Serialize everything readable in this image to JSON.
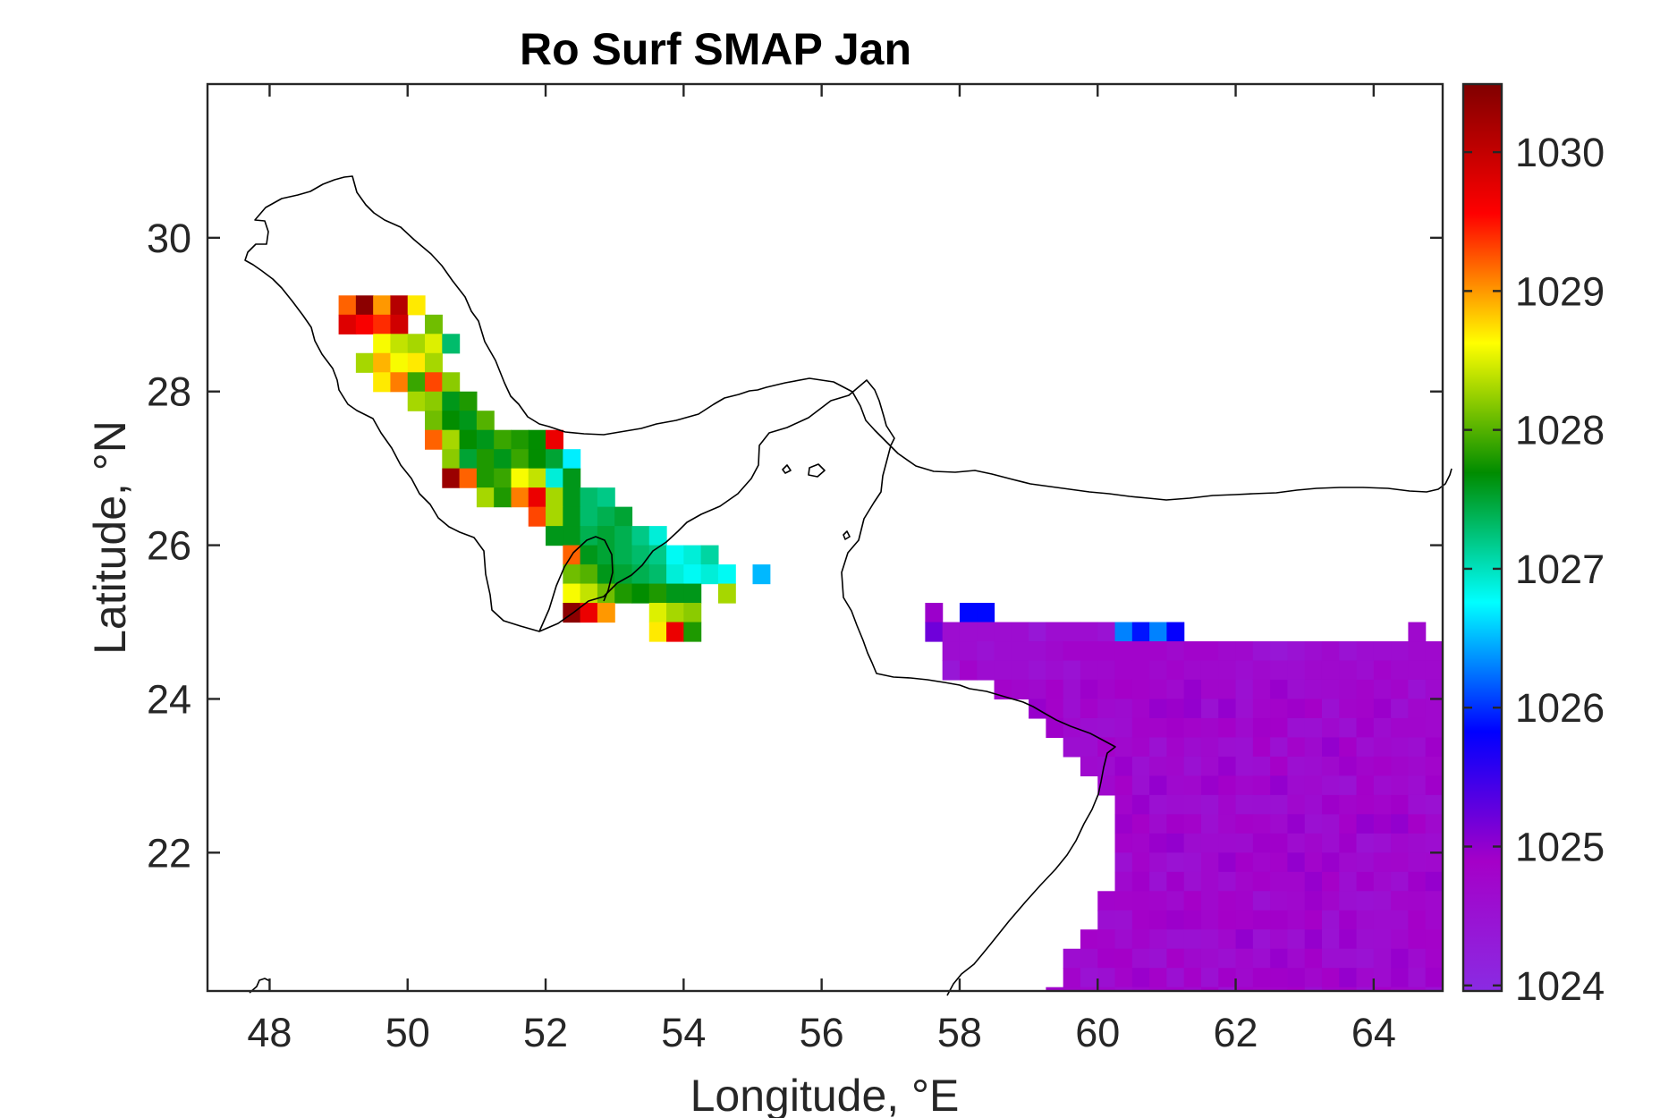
{
  "chart_data": {
    "type": "heatmap",
    "title": "Ro Surf SMAP Jan",
    "xlabel": "Longitude, °E",
    "ylabel": "Latitude, °N",
    "xlim": [
      47.1,
      65.0
    ],
    "ylim": [
      20.2,
      32.0
    ],
    "xticks": [
      48,
      50,
      52,
      54,
      56,
      58,
      60,
      62,
      64
    ],
    "yticks": [
      22,
      24,
      26,
      28,
      30
    ],
    "colorbar": {
      "range": [
        1023.96,
        1030.49
      ],
      "ticks": [
        1024,
        1025,
        1026,
        1027,
        1028,
        1029,
        1030
      ],
      "colormap": "jet-with-purple-base",
      "stops": [
        "#8a2be2",
        "#a500c8",
        "#0000ff",
        "#00ffff",
        "#008c00",
        "#ffff00",
        "#ff0000",
        "#800000"
      ]
    },
    "grid_resolution_deg": 0.25,
    "gulf_rows": [
      {
        "lat": 29.125,
        "lon0": 49.125,
        "values": [
          1029.2,
          1030.4,
          1029.0,
          1030.1,
          1028.7
        ]
      },
      {
        "lat": 28.875,
        "lon0": 49.125,
        "values": [
          1029.8,
          1029.6,
          1029.4,
          1029.9,
          null,
          1028.1
        ]
      },
      {
        "lat": 28.625,
        "lon0": 49.625,
        "values": [
          1028.6,
          1028.4,
          1028.3,
          1028.5,
          1027.3
        ]
      },
      {
        "lat": 28.375,
        "lon0": 49.375,
        "values": [
          1028.3,
          1028.9,
          1028.6,
          1028.7,
          1028.3
        ]
      },
      {
        "lat": 28.125,
        "lon0": 49.625,
        "values": [
          1028.7,
          1029.1,
          1027.9,
          1029.3,
          1028.2
        ]
      },
      {
        "lat": 27.875,
        "lon0": 50.125,
        "values": [
          1028.3,
          1028.2,
          1027.6,
          1027.8
        ]
      },
      {
        "lat": 27.625,
        "lon0": 50.375,
        "values": [
          1028.1,
          1027.7,
          1027.6,
          1028.0
        ]
      },
      {
        "lat": 27.375,
        "lon0": 50.375,
        "values": [
          1029.2,
          1028.3,
          1027.7,
          1027.6,
          1027.9,
          1027.8,
          1027.7,
          1029.7
        ]
      },
      {
        "lat": 27.125,
        "lon0": 50.625,
        "values": [
          1028.2,
          1027.5,
          1027.8,
          1027.6,
          1027.9,
          1027.7,
          1027.5,
          1026.7
        ]
      },
      {
        "lat": 26.875,
        "lon0": 50.625,
        "values": [
          1030.3,
          1029.2,
          1027.8,
          1027.9,
          1028.6,
          1028.4,
          1026.9,
          1027.6
        ]
      },
      {
        "lat": 26.625,
        "lon0": 51.125,
        "values": [
          1028.3,
          1027.8,
          1029.1,
          1029.7,
          1028.3,
          1027.6,
          1027.3,
          1027.2
        ]
      },
      {
        "lat": 26.375,
        "lon0": 51.875,
        "values": [
          1029.3,
          1028.3,
          1027.6,
          1027.3,
          1027.4,
          1027.5
        ]
      },
      {
        "lat": 26.125,
        "lon0": 52.125,
        "values": [
          1027.6,
          1027.6,
          1027.4,
          1027.5,
          1027.4,
          1027.2,
          1026.9
        ]
      },
      {
        "lat": 25.875,
        "lon0": 52.375,
        "values": [
          1029.2,
          1027.6,
          1027.5,
          1027.4,
          1027.3,
          1027.2,
          1026.8,
          1026.9,
          1027.1
        ]
      },
      {
        "lat": 25.625,
        "lon0": 52.375,
        "values": [
          1028.1,
          1028.0,
          1027.6,
          1027.5,
          1027.4,
          1027.3,
          1026.9,
          1026.8,
          1026.9,
          1026.8,
          null,
          1026.5
        ]
      },
      {
        "lat": 25.375,
        "lon0": 52.375,
        "values": [
          1028.6,
          1028.4,
          1028.1,
          1027.8,
          1027.7,
          1027.8,
          1027.6,
          1027.6,
          null,
          1028.3
        ]
      },
      {
        "lat": 25.125,
        "lon0": 52.375,
        "values": [
          1030.4,
          1029.7,
          1029.0,
          null,
          null,
          1028.5,
          1028.3,
          1028.2
        ]
      },
      {
        "lat": 24.875,
        "lon0": 53.625,
        "values": [
          1028.7,
          1029.7,
          1027.8
        ]
      }
    ],
    "sea_rows": [
      {
        "lat": 25.125,
        "lon0": 57.625,
        "values": [
          1024.95,
          null,
          1025.85,
          1025.85
        ]
      },
      {
        "lat": 24.875,
        "lon0": 57.625,
        "values": [
          1025.2,
          1024.6,
          1024.6,
          1024.6,
          1024.6,
          1024.6,
          1024.4,
          1024.6,
          1024.6,
          1024.6,
          1024.5,
          1026.3,
          1025.9,
          1026.3,
          1025.8,
          null,
          null,
          null,
          null,
          null,
          null,
          null,
          null,
          null,
          null,
          null,
          null,
          null,
          1024.7
        ]
      },
      {
        "lat": 24.625,
        "lon0": 57.875,
        "values": [
          1024.6,
          1024.6,
          1024.5,
          1024.6,
          1024.6,
          1024.6,
          1024.7,
          1024.8,
          1024.8,
          1024.8,
          1024.8,
          1024.8,
          1024.8,
          1024.7,
          1024.8,
          1024.8,
          1024.7,
          1024.7,
          1024.5,
          1024.4,
          1024.5,
          1024.6,
          1024.7,
          1024.5,
          1024.6,
          1024.6,
          1024.6,
          1024.7,
          1024.7,
          1024.8
        ]
      },
      {
        "lat": 24.375,
        "lon0": 57.875,
        "values": [
          1024.4,
          1024.8,
          1024.6,
          1024.6,
          1024.6,
          1024.5,
          1024.6,
          1024.5,
          1024.7,
          1024.7,
          1024.8,
          1024.8,
          1024.7,
          1024.8,
          1024.7,
          1024.7,
          1024.7,
          1024.6,
          1024.7,
          1024.6,
          1024.6,
          1024.7,
          1024.7,
          1024.7,
          1024.6,
          1024.8,
          1024.7,
          1024.7,
          1024.7,
          1024.8
        ]
      }
    ],
    "sea_fill": {
      "mean_value": 1024.75,
      "variation": 0.25,
      "cells_left_edge_by_lat": [
        {
          "lat": 24.125,
          "lon_west": 58.625
        },
        {
          "lat": 23.875,
          "lon_west": 59.125
        },
        {
          "lat": 23.625,
          "lon_west": 59.375
        },
        {
          "lat": 23.375,
          "lon_west": 59.625
        },
        {
          "lat": 23.125,
          "lon_west": 59.875
        },
        {
          "lat": 22.875,
          "lon_west": 60.125
        },
        {
          "lat": 22.625,
          "lon_west": 60.375
        },
        {
          "lat": 22.375,
          "lon_west": 60.375
        },
        {
          "lat": 22.125,
          "lon_west": 60.375
        },
        {
          "lat": 21.875,
          "lon_west": 60.375
        },
        {
          "lat": 21.625,
          "lon_west": 60.375
        },
        {
          "lat": 21.375,
          "lon_west": 60.125
        },
        {
          "lat": 21.125,
          "lon_west": 60.125
        },
        {
          "lat": 20.875,
          "lon_west": 59.875
        },
        {
          "lat": 20.625,
          "lon_west": 59.625
        },
        {
          "lat": 20.375,
          "lon_west": 59.625
        }
      ]
    }
  }
}
